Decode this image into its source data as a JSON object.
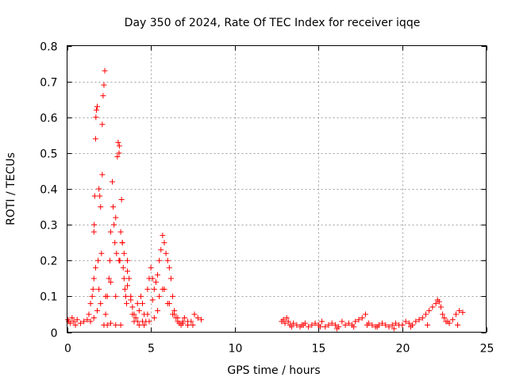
{
  "chart_data": {
    "type": "scatter",
    "title": "Day 350 of 2024, Rate Of TEC Index for receiver iqqe",
    "xlabel": "GPS time / hours",
    "ylabel": "ROTI / TECUs",
    "xlim": [
      0,
      25
    ],
    "ylim": [
      0,
      0.8
    ],
    "xticks": [
      "0",
      "5",
      "10",
      "15",
      "20",
      "25"
    ],
    "yticks": [
      "0",
      "0.1",
      "0.2",
      "0.3",
      "0.4",
      "0.5",
      "0.6",
      "0.7",
      "0.8"
    ],
    "grid": true,
    "marker": "+",
    "color": "#ff0000",
    "series": [
      {
        "x": [
          0.05,
          0.1,
          0.2,
          0.3,
          0.4,
          0.5,
          0.6,
          0.8,
          1.0,
          1.2,
          1.3,
          1.4,
          1.5,
          1.55,
          1.6,
          1.62,
          1.65,
          1.7,
          1.72,
          1.75,
          1.8,
          1.85,
          1.9,
          1.95,
          2.0,
          2.05,
          2.1,
          2.1,
          2.15,
          2.2,
          2.25,
          2.3,
          2.4,
          2.5,
          2.55,
          2.6,
          2.7,
          2.75,
          2.8,
          2.85,
          2.9,
          2.95,
          3.0,
          3.05,
          3.1,
          3.12,
          3.15,
          3.2,
          3.25,
          3.3,
          3.35,
          3.4,
          3.45,
          3.5,
          3.55,
          3.6,
          3.7,
          3.8,
          3.9,
          4.0,
          4.1,
          4.2,
          4.3,
          4.4,
          4.5,
          4.6,
          4.7,
          4.8,
          4.9,
          5.0,
          5.1,
          5.2,
          5.3,
          5.4,
          5.5,
          5.6,
          5.7,
          5.8,
          5.9,
          6.0,
          6.1,
          6.2,
          6.3,
          6.4,
          6.5,
          6.6,
          6.7,
          6.8,
          6.9,
          7.0,
          7.2,
          7.4,
          7.6,
          7.8,
          8.0,
          1.6,
          1.7,
          1.9,
          2.2,
          2.4,
          2.6,
          2.9,
          3.2,
          3.4,
          3.6,
          3.8,
          4.0,
          4.3,
          4.6,
          4.9,
          5.2,
          5.5,
          5.8,
          6.1,
          6.4,
          1.4,
          1.6,
          1.8,
          2.0,
          2.3,
          2.6,
          2.9,
          3.1,
          3.3,
          3.6,
          3.9,
          4.2,
          4.5,
          4.8,
          5.1,
          5.4,
          5.7,
          6.0,
          6.3,
          6.6,
          6.9,
          7.2,
          7.5
        ],
        "y": [
          0.035,
          0.03,
          0.025,
          0.04,
          0.03,
          0.02,
          0.035,
          0.025,
          0.03,
          0.035,
          0.05,
          0.08,
          0.1,
          0.12,
          0.28,
          0.3,
          0.38,
          0.54,
          0.6,
          0.62,
          0.63,
          0.2,
          0.4,
          0.38,
          0.35,
          0.22,
          0.44,
          0.58,
          0.66,
          0.69,
          0.73,
          0.05,
          0.1,
          0.15,
          0.2,
          0.28,
          0.42,
          0.35,
          0.3,
          0.25,
          0.32,
          0.22,
          0.49,
          0.53,
          0.5,
          0.52,
          0.2,
          0.28,
          0.37,
          0.25,
          0.18,
          0.15,
          0.12,
          0.1,
          0.08,
          0.2,
          0.15,
          0.1,
          0.07,
          0.05,
          0.04,
          0.03,
          0.06,
          0.1,
          0.08,
          0.05,
          0.03,
          0.12,
          0.15,
          0.18,
          0.15,
          0.12,
          0.14,
          0.16,
          0.2,
          0.23,
          0.27,
          0.25,
          0.22,
          0.2,
          0.18,
          0.15,
          0.1,
          0.06,
          0.04,
          0.03,
          0.025,
          0.02,
          0.03,
          0.04,
          0.02,
          0.03,
          0.05,
          0.04,
          0.035,
          0.15,
          0.18,
          0.12,
          0.02,
          0.02,
          0.025,
          0.02,
          0.02,
          0.22,
          0.13,
          0.09,
          0.03,
          0.02,
          0.02,
          0.03,
          0.04,
          0.1,
          0.12,
          0.08,
          0.05,
          0.03,
          0.04,
          0.06,
          0.08,
          0.1,
          0.14,
          0.1,
          0.2,
          0.25,
          0.17,
          0.05,
          0.08,
          0.03,
          0.05,
          0.09,
          0.06,
          0.12,
          0.08,
          0.05,
          0.04,
          0.025,
          0.03,
          0.02
        ]
      },
      {
        "x": [
          12.8,
          12.9,
          13.0,
          13.1,
          13.2,
          13.3,
          13.5,
          13.7,
          13.9,
          14.0,
          14.2,
          14.4,
          14.6,
          14.8,
          15.0,
          15.2,
          15.4,
          15.6,
          15.8,
          16.0,
          16.2,
          16.4,
          16.6,
          16.8,
          17.0,
          17.2,
          17.4,
          17.6,
          17.8,
          18.0,
          18.2,
          18.4,
          18.6,
          18.8,
          19.0,
          19.2,
          19.4,
          19.6,
          19.8,
          20.0,
          20.2,
          20.4,
          20.6,
          20.8,
          21.0,
          21.2,
          21.4,
          21.6,
          21.8,
          22.0,
          22.1,
          22.2,
          22.3,
          22.4,
          22.5,
          22.6,
          22.8,
          23.0,
          23.2,
          23.4,
          23.6,
          13.4,
          14.1,
          15.1,
          16.1,
          17.1,
          17.9,
          18.5,
          19.5,
          20.5,
          21.5,
          22.7,
          23.3
        ],
        "y": [
          0.03,
          0.035,
          0.025,
          0.04,
          0.03,
          0.02,
          0.025,
          0.02,
          0.015,
          0.02,
          0.025,
          0.015,
          0.02,
          0.025,
          0.02,
          0.03,
          0.015,
          0.02,
          0.025,
          0.02,
          0.015,
          0.03,
          0.02,
          0.025,
          0.02,
          0.03,
          0.035,
          0.04,
          0.05,
          0.025,
          0.02,
          0.015,
          0.02,
          0.025,
          0.02,
          0.015,
          0.02,
          0.025,
          0.02,
          0.02,
          0.03,
          0.025,
          0.02,
          0.03,
          0.035,
          0.04,
          0.05,
          0.06,
          0.07,
          0.08,
          0.09,
          0.085,
          0.07,
          0.05,
          0.04,
          0.03,
          0.025,
          0.035,
          0.05,
          0.06,
          0.055,
          0.015,
          0.02,
          0.015,
          0.01,
          0.015,
          0.02,
          0.015,
          0.01,
          0.015,
          0.02,
          0.03,
          0.02
        ]
      }
    ]
  }
}
